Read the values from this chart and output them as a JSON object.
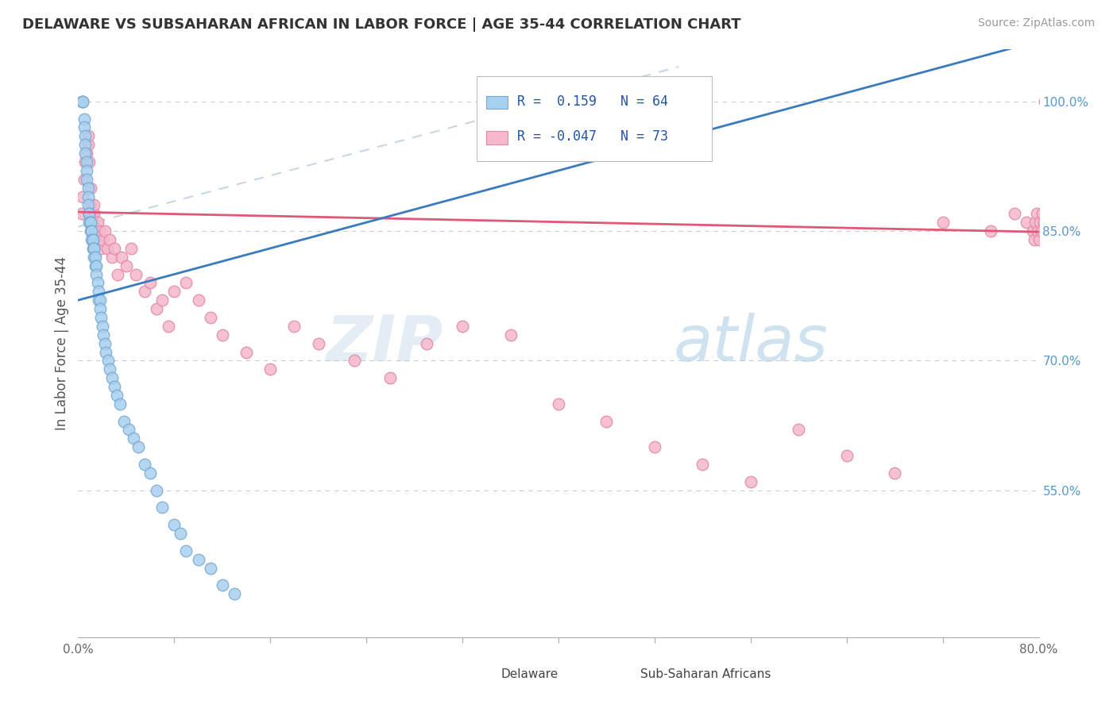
{
  "title": "DELAWARE VS SUBSAHARAN AFRICAN IN LABOR FORCE | AGE 35-44 CORRELATION CHART",
  "source": "Source: ZipAtlas.com",
  "ylabel": "In Labor Force | Age 35-44",
  "xlim": [
    0.0,
    0.8
  ],
  "ylim": [
    0.38,
    1.06
  ],
  "x_ticks": [
    0.0,
    0.8
  ],
  "x_tick_labels": [
    "0.0%",
    "80.0%"
  ],
  "y_ticks": [
    0.55,
    0.7,
    0.85,
    1.0
  ],
  "y_tick_labels": [
    "55.0%",
    "70.0%",
    "85.0%",
    "100.0%"
  ],
  "r_delaware": 0.159,
  "n_delaware": 64,
  "r_subsaharan": -0.047,
  "n_subsaharan": 73,
  "delaware_color": "#a8d0f0",
  "delaware_edge_color": "#7aaad0",
  "subsaharan_color": "#f5b8cc",
  "subsaharan_edge_color": "#e08aaa",
  "trend_delaware_color": "#3a7bbf",
  "trend_subsaharan_color": "#e05878",
  "dashed_line_color": "#bbccdd",
  "background_color": "#ffffff",
  "grid_color": "#cccccc",
  "delaware_x": [
    0.003,
    0.004,
    0.004,
    0.005,
    0.005,
    0.006,
    0.006,
    0.006,
    0.007,
    0.007,
    0.007,
    0.008,
    0.008,
    0.008,
    0.009,
    0.009,
    0.009,
    0.01,
    0.01,
    0.01,
    0.011,
    0.011,
    0.011,
    0.012,
    0.012,
    0.012,
    0.013,
    0.013,
    0.013,
    0.014,
    0.014,
    0.015,
    0.015,
    0.016,
    0.017,
    0.017,
    0.018,
    0.018,
    0.019,
    0.02,
    0.021,
    0.022,
    0.023,
    0.025,
    0.026,
    0.028,
    0.03,
    0.032,
    0.035,
    0.038,
    0.042,
    0.046,
    0.05,
    0.055,
    0.06,
    0.065,
    0.07,
    0.08,
    0.085,
    0.09,
    0.1,
    0.11,
    0.12,
    0.13
  ],
  "delaware_y": [
    1.0,
    1.0,
    1.0,
    0.98,
    0.97,
    0.96,
    0.95,
    0.94,
    0.93,
    0.92,
    0.91,
    0.9,
    0.89,
    0.88,
    0.87,
    0.87,
    0.86,
    0.86,
    0.86,
    0.85,
    0.85,
    0.85,
    0.84,
    0.84,
    0.84,
    0.83,
    0.83,
    0.83,
    0.82,
    0.82,
    0.81,
    0.81,
    0.8,
    0.79,
    0.78,
    0.77,
    0.77,
    0.76,
    0.75,
    0.74,
    0.73,
    0.72,
    0.71,
    0.7,
    0.69,
    0.68,
    0.67,
    0.66,
    0.65,
    0.63,
    0.62,
    0.61,
    0.6,
    0.58,
    0.57,
    0.55,
    0.53,
    0.51,
    0.5,
    0.48,
    0.47,
    0.46,
    0.44,
    0.43
  ],
  "subsaharan_x": [
    0.003,
    0.004,
    0.005,
    0.006,
    0.007,
    0.008,
    0.008,
    0.009,
    0.01,
    0.01,
    0.011,
    0.012,
    0.013,
    0.013,
    0.014,
    0.015,
    0.016,
    0.017,
    0.018,
    0.019,
    0.02,
    0.022,
    0.024,
    0.026,
    0.028,
    0.03,
    0.033,
    0.036,
    0.04,
    0.044,
    0.048,
    0.055,
    0.06,
    0.065,
    0.07,
    0.075,
    0.08,
    0.09,
    0.1,
    0.11,
    0.12,
    0.14,
    0.16,
    0.18,
    0.2,
    0.23,
    0.26,
    0.29,
    0.32,
    0.36,
    0.4,
    0.44,
    0.48,
    0.52,
    0.56,
    0.6,
    0.64,
    0.68,
    0.72,
    0.76,
    0.78,
    0.79,
    0.795,
    0.796,
    0.797,
    0.798,
    0.799,
    0.8,
    0.801,
    0.802,
    0.803,
    0.804,
    0.805
  ],
  "subsaharan_y": [
    0.87,
    0.89,
    0.91,
    0.93,
    0.94,
    0.95,
    0.96,
    0.93,
    0.9,
    0.88,
    0.87,
    0.86,
    0.87,
    0.88,
    0.85,
    0.84,
    0.86,
    0.84,
    0.85,
    0.83,
    0.84,
    0.85,
    0.83,
    0.84,
    0.82,
    0.83,
    0.8,
    0.82,
    0.81,
    0.83,
    0.8,
    0.78,
    0.79,
    0.76,
    0.77,
    0.74,
    0.78,
    0.79,
    0.77,
    0.75,
    0.73,
    0.71,
    0.69,
    0.74,
    0.72,
    0.7,
    0.68,
    0.72,
    0.74,
    0.73,
    0.65,
    0.63,
    0.6,
    0.58,
    0.56,
    0.62,
    0.59,
    0.57,
    0.86,
    0.85,
    0.87,
    0.86,
    0.85,
    0.84,
    0.86,
    0.87,
    0.85,
    0.84,
    0.86,
    0.85,
    0.87,
    0.86,
    1.0
  ]
}
